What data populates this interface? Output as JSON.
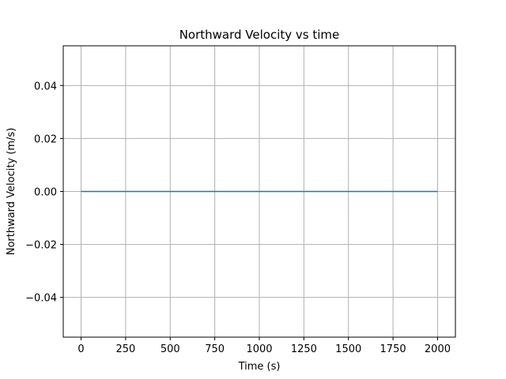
{
  "chart_data": {
    "type": "line",
    "title": "Northward Velocity vs time",
    "xlabel": "Time (s)",
    "ylabel": "Northward Velocity (m/s)",
    "xlim": [
      -100,
      2100
    ],
    "ylim": [
      -0.055,
      0.055
    ],
    "x_ticks": [
      0,
      250,
      500,
      750,
      1000,
      1250,
      1500,
      1750,
      2000
    ],
    "x_tick_labels": [
      "0",
      "250",
      "500",
      "750",
      "1000",
      "1250",
      "1500",
      "1750",
      "2000"
    ],
    "y_ticks": [
      -0.04,
      -0.02,
      0.0,
      0.02,
      0.04
    ],
    "y_tick_labels": [
      "−0.04",
      "−0.02",
      "0.00",
      "0.02",
      "0.04"
    ],
    "grid": true,
    "series": [
      {
        "color": "#1f77b4",
        "x": [
          0,
          2000
        ],
        "y": [
          0.0,
          0.0
        ]
      }
    ],
    "colors": {
      "grid": "#b0b0b0",
      "axes": "#000000",
      "line": "#1f77b4"
    }
  }
}
